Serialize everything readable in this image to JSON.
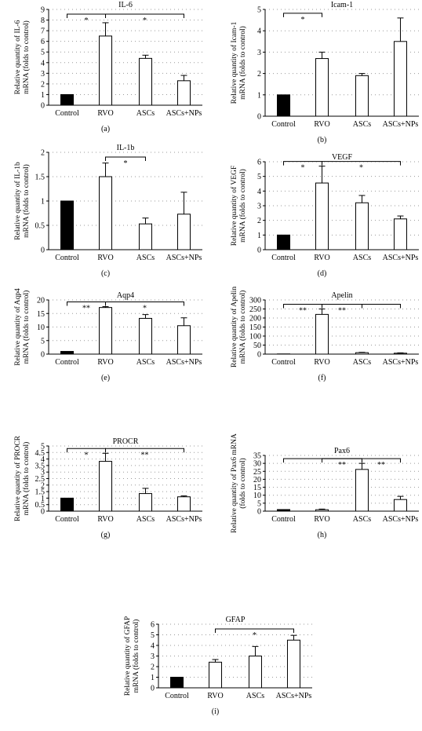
{
  "chart_data": [
    {
      "id": "a",
      "type": "bar",
      "title": "IL-6",
      "panel_label": "(a)",
      "ylabel": [
        "Relative quantity of IL-6",
        "mRNA (folds to control)"
      ],
      "ylim": [
        0,
        9
      ],
      "yticks": [
        0,
        1,
        2,
        3,
        4,
        5,
        6,
        7,
        8,
        9
      ],
      "categories": [
        "Control",
        "RVO",
        "ASCs",
        "ASCs+NPs"
      ],
      "values": [
        1.0,
        6.5,
        4.4,
        2.3
      ],
      "errors": [
        0,
        1.25,
        0.3,
        0.5
      ],
      "brackets": [
        {
          "from": 0,
          "to": 1,
          "label": "*"
        },
        {
          "from": 1,
          "to": 3,
          "label": "*"
        }
      ]
    },
    {
      "id": "b",
      "type": "bar",
      "title": "Icam-1",
      "panel_label": "(b)",
      "ylabel": [
        "Relative quantity of Icam-1",
        "mRNA (folds to control)"
      ],
      "ylim": [
        0,
        5
      ],
      "yticks": [
        0,
        1,
        2,
        3,
        4,
        5
      ],
      "categories": [
        "Control",
        "RVO",
        "ASCs",
        "ASCs+NPs"
      ],
      "values": [
        1.0,
        2.7,
        1.9,
        3.5
      ],
      "errors": [
        0,
        0.3,
        0.1,
        1.1
      ],
      "brackets": [
        {
          "from": 0,
          "to": 1,
          "label": "*"
        }
      ]
    },
    {
      "id": "c",
      "type": "bar",
      "title": "IL-1b",
      "panel_label": "(c)",
      "ylabel": [
        "Relative quantity of IL-1b",
        "mRNA (folds to control)"
      ],
      "ylim": [
        0,
        2
      ],
      "yticks": [
        0,
        0.5,
        1,
        1.5,
        2
      ],
      "categories": [
        "Control",
        "RVO",
        "ASCs",
        "ASCs+NPs"
      ],
      "values": [
        1.0,
        1.5,
        0.53,
        0.73
      ],
      "errors": [
        0,
        0.28,
        0.12,
        0.45
      ],
      "brackets": [
        {
          "from": 1,
          "to": 2,
          "label": "*"
        }
      ]
    },
    {
      "id": "d",
      "type": "bar",
      "title": "VEGF",
      "panel_label": "(d)",
      "ylabel": [
        "Relative quantity of VEGF",
        "mRNA (folds to control)"
      ],
      "ylim": [
        0,
        6
      ],
      "yticks": [
        0,
        1,
        2,
        3,
        4,
        5,
        6
      ],
      "categories": [
        "Control",
        "RVO",
        "ASCs",
        "ASCs+NPs"
      ],
      "values": [
        1.0,
        4.55,
        3.2,
        2.1
      ],
      "errors": [
        0,
        1.15,
        0.5,
        0.2
      ],
      "brackets": [
        {
          "from": 0,
          "to": 1,
          "label": "*"
        },
        {
          "from": 1,
          "to": 3,
          "label": "*"
        }
      ]
    },
    {
      "id": "e",
      "type": "bar",
      "title": "Aqp4",
      "panel_label": "(e)",
      "ylabel": [
        "Relative quantity of Aqp4",
        "mRNA (folds to control)"
      ],
      "ylim": [
        0,
        20
      ],
      "yticks": [
        0,
        5,
        10,
        15,
        20
      ],
      "categories": [
        "Control",
        "RVO",
        "ASCs",
        "ASCs+NPs"
      ],
      "values": [
        1.0,
        17.2,
        13.2,
        10.5
      ],
      "errors": [
        0,
        0.35,
        1.4,
        2.9
      ],
      "brackets": [
        {
          "from": 0,
          "to": 1,
          "label": "**"
        },
        {
          "from": 1,
          "to": 3,
          "label": "*"
        }
      ]
    },
    {
      "id": "f",
      "type": "bar",
      "title": "Apelin",
      "panel_label": "(f)",
      "ylabel": [
        "Relative quantity of Apelin",
        "mRNA (folds to control)"
      ],
      "ylim": [
        0,
        300
      ],
      "yticks": [
        0,
        50,
        100,
        150,
        200,
        250,
        300
      ],
      "categories": [
        "Control",
        "RVO",
        "ASCs",
        "ASCs+NPs"
      ],
      "values": [
        1,
        220,
        8,
        5
      ],
      "errors": [
        0,
        30,
        2,
        2
      ],
      "brackets": [
        {
          "from": 0,
          "to": 1,
          "label": "**"
        },
        {
          "from": 1,
          "to": 2,
          "label": "**"
        },
        {
          "from": 1,
          "to": 3,
          "label": ""
        }
      ]
    },
    {
      "id": "g",
      "type": "bar",
      "title": "PROCR",
      "panel_label": "(g)",
      "ylabel": [
        "Relative quantity of PROCR",
        "mRNA (folds to control)"
      ],
      "ylim": [
        0,
        5
      ],
      "yticks": [
        0,
        0.5,
        1,
        1.5,
        2,
        2.5,
        3,
        3.5,
        4,
        4.5,
        5
      ],
      "categories": [
        "Control",
        "RVO",
        "ASCs",
        "ASCs+NPs"
      ],
      "values": [
        1.0,
        3.82,
        1.35,
        1.1
      ],
      "errors": [
        0,
        0.62,
        0.4,
        0.07
      ],
      "brackets": [
        {
          "from": 0,
          "to": 1,
          "label": "*"
        },
        {
          "from": 1,
          "to": 3,
          "label": "**"
        }
      ]
    },
    {
      "id": "h",
      "type": "bar",
      "title": "Pax6",
      "panel_label": "(h)",
      "ylabel": [
        "Relative quantity of Pax6 mRNA",
        "(folds to control)"
      ],
      "ylim": [
        0,
        35
      ],
      "yticks": [
        0,
        5,
        10,
        15,
        20,
        25,
        30,
        35
      ],
      "categories": [
        "Control",
        "RVO",
        "ASCs",
        "ASCs+NPs"
      ],
      "values": [
        1.0,
        0.9,
        26.2,
        7.3
      ],
      "errors": [
        0,
        0.4,
        3.8,
        2.0
      ],
      "brackets": [
        {
          "from": 1,
          "to": 2,
          "label": "**"
        },
        {
          "from": 2,
          "to": 3,
          "label": "**"
        },
        {
          "from": 0,
          "to": 2,
          "label": ""
        }
      ]
    },
    {
      "id": "i",
      "type": "bar",
      "title": "GFAP",
      "panel_label": "(i)",
      "ylabel": [
        "Relative quantity of GFAP",
        "mRNA (folds to control)"
      ],
      "ylim": [
        0,
        6
      ],
      "yticks": [
        0,
        1,
        2,
        3,
        4,
        5,
        6
      ],
      "categories": [
        "Control",
        "RVO",
        "ASCs",
        "ASCs+NPs"
      ],
      "values": [
        1.0,
        2.42,
        3.0,
        4.5
      ],
      "errors": [
        0,
        0.25,
        0.9,
        0.45
      ],
      "brackets": [
        {
          "from": 1,
          "to": 3,
          "label": "*"
        }
      ]
    }
  ],
  "colors": {
    "control_bar": "#000000",
    "other_bar": "#ffffff",
    "axis": "#000000",
    "grid": "#9a9a9a"
  }
}
